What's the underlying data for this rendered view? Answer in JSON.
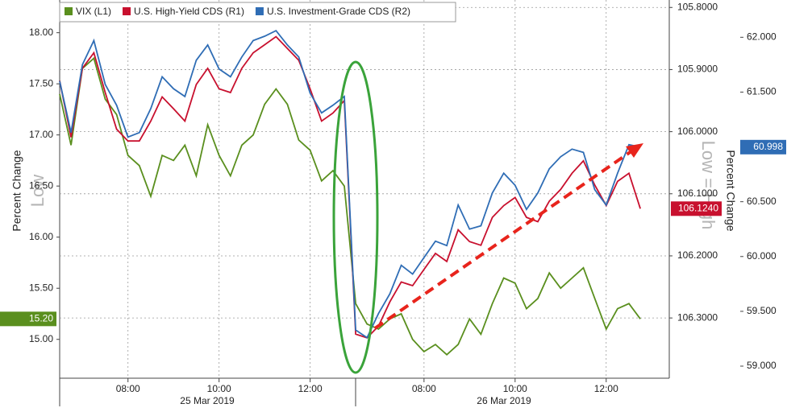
{
  "chart_data": {
    "type": "line",
    "categories": [
      null,
      null,
      null,
      null,
      null,
      null,
      "08:00",
      null,
      null,
      null,
      null,
      null,
      null,
      null,
      "10:00",
      null,
      null,
      null,
      null,
      null,
      null,
      null,
      "12:00",
      null,
      null,
      null,
      null,
      null,
      null,
      null,
      null,
      null,
      "08:00",
      null,
      null,
      null,
      null,
      null,
      null,
      null,
      "10:00",
      null,
      null,
      null,
      null,
      null,
      null,
      null,
      "12:00",
      null,
      null,
      null
    ],
    "day_labels": [
      "25 Mar 2019",
      "26 Mar 2019"
    ],
    "y_label": "Percent Change",
    "y3_label": "Percent Change",
    "annotations": [
      "Low",
      "Low = High"
    ],
    "ylim": [
      14.62,
      18.32
    ],
    "yticks": [
      {
        "value": 15,
        "label": "15.00"
      },
      {
        "value": 15.5,
        "label": "15.50"
      },
      {
        "value": 16,
        "label": "16.00"
      },
      {
        "value": 16.5,
        "label": "16.50"
      },
      {
        "value": 17,
        "label": "17.00"
      },
      {
        "value": 17.5,
        "label": "17.50"
      },
      {
        "value": 18,
        "label": "18.00"
      }
    ],
    "y2lim": [
      106.397,
      105.788
    ],
    "y2ticks": [
      {
        "value": 105.8,
        "label": "105.8000"
      },
      {
        "value": 105.9,
        "label": "105.9000"
      },
      {
        "value": 106,
        "label": "106.0000"
      },
      {
        "value": 106.1,
        "label": "106.1000"
      },
      {
        "value": 106.2,
        "label": "106.2000"
      },
      {
        "value": 106.3,
        "label": "106.3000"
      }
    ],
    "y3lim": [
      58.89,
      62.34
    ],
    "y3ticks": [
      {
        "value": 59,
        "label": "59.000"
      },
      {
        "value": 59.5,
        "label": "59.500"
      },
      {
        "value": 60,
        "label": "60.000"
      },
      {
        "value": 60.5,
        "label": "60.500"
      },
      {
        "value": 61,
        "label": "61.000"
      },
      {
        "value": 61.5,
        "label": "61.500"
      },
      {
        "value": 62,
        "label": "62.000"
      }
    ],
    "grid": true,
    "series": [
      {
        "name": "VIX (L1)",
        "color": "#5a8f1e",
        "last_value_label": "15.20",
        "values": [
          17.4,
          16.9,
          17.65,
          17.75,
          17.35,
          17.2,
          16.8,
          16.7,
          16.4,
          16.8,
          16.75,
          16.9,
          16.6,
          17.1,
          16.8,
          16.6,
          16.9,
          17.0,
          17.3,
          17.45,
          17.3,
          16.95,
          16.85,
          16.55,
          16.65,
          16.5,
          15.35,
          15.15,
          15.1,
          15.2,
          15.25,
          15.0,
          14.88,
          14.95,
          14.85,
          14.95,
          15.2,
          15.05,
          15.35,
          15.6,
          15.55,
          15.3,
          15.4,
          15.65,
          15.5,
          15.6,
          15.7,
          15.4,
          15.1,
          15.3,
          15.35,
          15.2
        ]
      },
      {
        "name": "U.S. High-Yield CDS (R1)",
        "color": "#c8102e",
        "axis": "y2",
        "last_value_label": "106.1240",
        "values": [
          105.918,
          106.009,
          105.898,
          105.873,
          105.937,
          105.996,
          106.015,
          106.015,
          105.983,
          105.944,
          105.963,
          105.983,
          105.924,
          105.898,
          105.931,
          105.937,
          105.898,
          105.873,
          105.86,
          105.847,
          105.866,
          105.885,
          105.931,
          105.983,
          105.97,
          105.95,
          106.326,
          106.332,
          106.313,
          106.274,
          106.242,
          106.248,
          106.222,
          106.196,
          106.209,
          106.158,
          106.177,
          106.183,
          106.138,
          106.119,
          106.106,
          106.138,
          106.145,
          106.112,
          106.093,
          106.067,
          106.047,
          106.086,
          106.119,
          106.08,
          106.067,
          106.124
        ]
      },
      {
        "name": "U.S. Investment-Grade CDS (R2)",
        "color": "#2f6db5",
        "axis": "y3",
        "last_value_label": "60.998",
        "values": [
          61.6,
          61.13,
          61.75,
          61.97,
          61.57,
          61.38,
          61.09,
          61.13,
          61.35,
          61.64,
          61.53,
          61.46,
          61.79,
          61.93,
          61.71,
          61.64,
          61.82,
          61.97,
          62.01,
          62.06,
          61.93,
          61.82,
          61.49,
          61.31,
          61.38,
          61.46,
          59.33,
          59.26,
          59.48,
          59.66,
          59.92,
          59.84,
          59.99,
          60.14,
          60.1,
          60.47,
          60.25,
          60.28,
          60.58,
          60.76,
          60.65,
          60.43,
          60.58,
          60.8,
          60.91,
          60.98,
          60.95,
          60.61,
          60.47,
          60.76,
          61.02,
          60.998
        ]
      }
    ]
  }
}
